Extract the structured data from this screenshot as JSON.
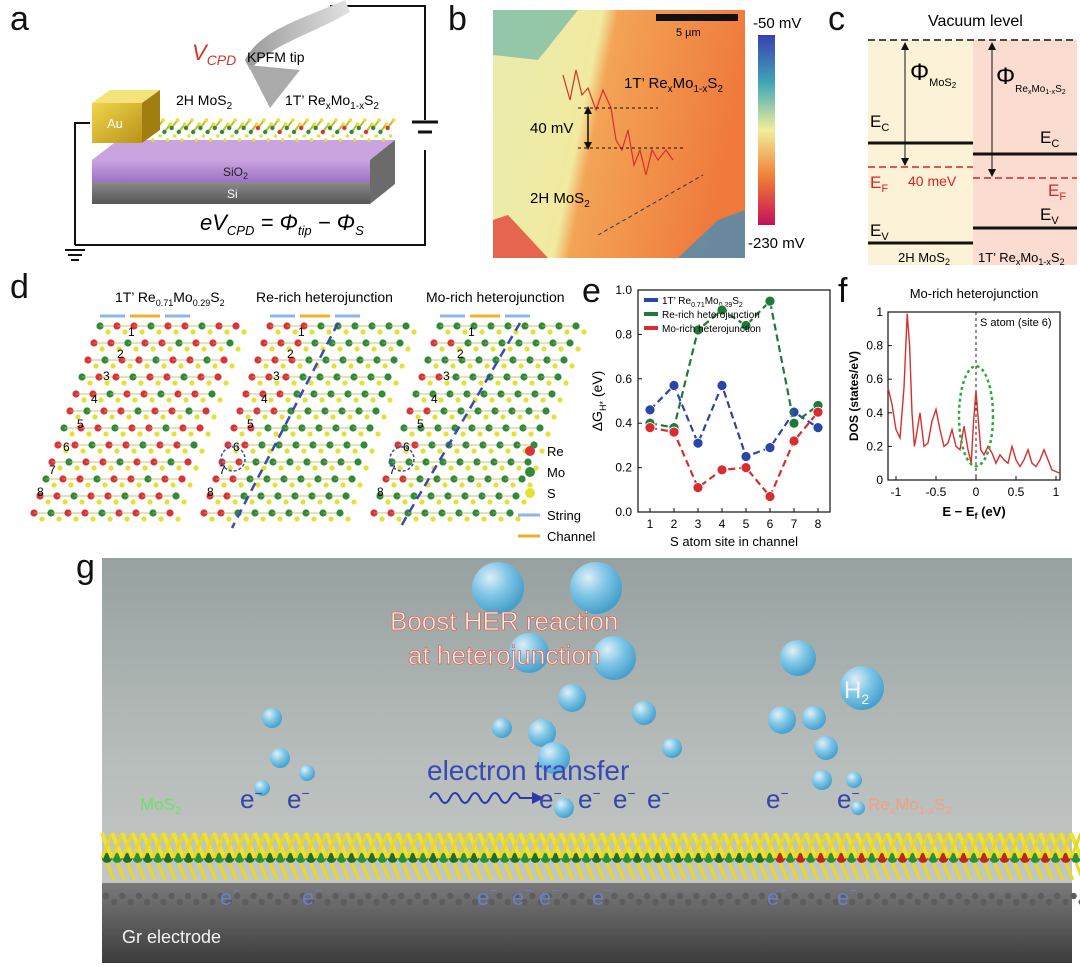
{
  "panel_labels": {
    "a": "a",
    "b": "b",
    "c": "c",
    "d": "d",
    "e": "e",
    "f": "f",
    "g": "g"
  },
  "panel_a": {
    "vcpd": "V",
    "vcpd_sub": "CPD",
    "tip": "KPFM tip",
    "left": "2H MoS",
    "left_sub": "2",
    "right_pre": "1T’ Re",
    "right_x": "x",
    "right_mid": "Mo",
    "right_1x": "1-x",
    "right_s": "S",
    "right_2": "2",
    "au": "Au",
    "sio2": "SiO",
    "sio2_sub": "2",
    "si": "Si",
    "equation": "eV",
    "eq_cpd": "CPD",
    "eq_mid": " = Φ",
    "eq_tip": "tip",
    "eq_minus": " − Φ",
    "eq_s": "S"
  },
  "panel_b": {
    "scale": "5 µm",
    "top": "-50 mV",
    "bottom": "-230 mV",
    "delta": "40 mV",
    "left": "2H MoS",
    "left_sub": "2",
    "right_pre": "1T’ Re",
    "right_x": "x",
    "right_mid": "Mo",
    "right_1x": "1-x",
    "right_s": "S",
    "right_2": "2"
  },
  "panel_c": {
    "vacuum": "Vacuum level",
    "phi": "Φ",
    "phi1_sub": "MoS",
    "phi1_sub2": "2",
    "phi2_sub": "Re",
    "phi2_sub2": "x",
    "phi2_sub3": "Mo",
    "phi2_sub4": "1-x",
    "phi2_sub5": "S",
    "phi2_sub6": "2",
    "ec": "E",
    "ec_sub": "C",
    "ef": "E",
    "ef_sub": "F",
    "ev": "E",
    "ev_sub": "V",
    "delta": "40 meV",
    "left": "2H MoS",
    "left_sub": "2",
    "right_pre": "1T’ Re",
    "right_x": "x",
    "right_mid": "Mo",
    "right_1x": "1-x",
    "right_s": "S",
    "right_2": "2"
  },
  "panel_d": {
    "titles": [
      "1T’ Re",
      "Re-rich heterojunction",
      "Mo-rich heterojunction"
    ],
    "t1_sub1": "0.71",
    "t1_mid": "Mo",
    "t1_sub2": "0.29",
    "t1_s": "S",
    "t1_sub3": "2",
    "sites": [
      "1",
      "2",
      "3",
      "4",
      "5",
      "6",
      "7",
      "8"
    ],
    "legend": [
      "Re",
      "Mo",
      "S",
      "String",
      "Channel"
    ],
    "colors": {
      "re": "#d8343a",
      "mo": "#2f8a3a",
      "s": "#e5e036",
      "string": "#8ab7e8",
      "channel": "#f1b02c"
    }
  },
  "chart_data": [
    {
      "type": "line",
      "panel": "e",
      "xlabel": "S  atom site in channel",
      "ylabel": "ΔG",
      "ylabel_sub": "H*",
      "ylabel_unit": " (eV)",
      "x": [
        1,
        2,
        3,
        4,
        5,
        6,
        7,
        8
      ],
      "xlim": [
        0.5,
        8.5
      ],
      "ylim": [
        0.0,
        1.0
      ],
      "xticks": [
        "1",
        "2",
        "3",
        "4",
        "5",
        "6",
        "7",
        "8"
      ],
      "yticks": [
        "0.0",
        "0.2",
        "0.4",
        "0.6",
        "0.8",
        "1.0"
      ],
      "legend_position": "top-left",
      "series": [
        {
          "name": "1T’ Re",
          "name_sub1": "0.71",
          "name_mid": "Mo",
          "name_sub2": "0.29",
          "name_s": "S",
          "name_sub3": "2",
          "color": "#2946a8",
          "values": [
            0.46,
            0.57,
            0.31,
            0.57,
            0.25,
            0.29,
            0.45,
            0.38
          ]
        },
        {
          "name": "Re-rich heterojunction",
          "color": "#1f7a3a",
          "values": [
            0.4,
            0.38,
            0.82,
            0.91,
            0.84,
            0.95,
            0.4,
            0.48
          ]
        },
        {
          "name": "Mo-rich heterojunction",
          "color": "#d62e2e",
          "values": [
            0.38,
            0.36,
            0.11,
            0.19,
            0.2,
            0.07,
            0.32,
            0.45
          ]
        }
      ]
    },
    {
      "type": "line",
      "panel": "f",
      "title": "Mo-rich heterojunction",
      "xlabel": "E − E",
      "xlabel_sub": "f",
      "xlabel_unit": " (eV)",
      "ylabel": "DOS (states/eV)",
      "annotation": "S atom (site 6)",
      "xlim": [
        -1.1,
        1.05
      ],
      "ylim": [
        0,
        1
      ],
      "xticks": [
        "-1",
        "-0.5",
        "0",
        "0.5",
        "1"
      ],
      "xtick_values": [
        -1,
        -0.5,
        0,
        0.5,
        1
      ],
      "yticks": [
        "0",
        "0.2",
        "0.4",
        "0.6",
        "0.8",
        "1"
      ],
      "color": "#d62e2e",
      "x": [
        -1.1,
        -1.05,
        -1.0,
        -0.95,
        -0.9,
        -0.86,
        -0.83,
        -0.8,
        -0.77,
        -0.74,
        -0.7,
        -0.65,
        -0.6,
        -0.55,
        -0.5,
        -0.45,
        -0.4,
        -0.35,
        -0.3,
        -0.25,
        -0.2,
        -0.15,
        -0.1,
        -0.06,
        -0.03,
        0.0,
        0.03,
        0.06,
        0.1,
        0.15,
        0.2,
        0.25,
        0.3,
        0.35,
        0.4,
        0.45,
        0.5,
        0.55,
        0.6,
        0.65,
        0.7,
        0.75,
        0.8,
        0.85,
        0.9,
        0.95,
        1.0,
        1.05
      ],
      "values": [
        0.55,
        0.45,
        0.3,
        0.25,
        0.55,
        0.99,
        0.8,
        0.4,
        0.2,
        0.28,
        0.4,
        0.2,
        0.22,
        0.35,
        0.42,
        0.3,
        0.2,
        0.22,
        0.3,
        0.2,
        0.18,
        0.32,
        0.18,
        0.1,
        0.35,
        0.53,
        0.35,
        0.18,
        0.15,
        0.2,
        0.16,
        0.1,
        0.15,
        0.12,
        0.1,
        0.2,
        0.12,
        0.08,
        0.12,
        0.18,
        0.1,
        0.08,
        0.12,
        0.18,
        0.12,
        0.06,
        0.05,
        0.04
      ]
    }
  ],
  "panel_g": {
    "title1": "Boost HER reaction",
    "title2": "at heterojunction",
    "transfer": "electron transfer",
    "h2": "H",
    "h2_sub": "2",
    "left": "MoS",
    "left_sub": "2",
    "right_pre": "Re",
    "right_x": "x",
    "right_mid": "Mo",
    "right_1x": "1-x",
    "right_s": "S",
    "right_2": "2",
    "electron": "e",
    "electron_sup": "−",
    "electrode": "Gr electrode"
  }
}
